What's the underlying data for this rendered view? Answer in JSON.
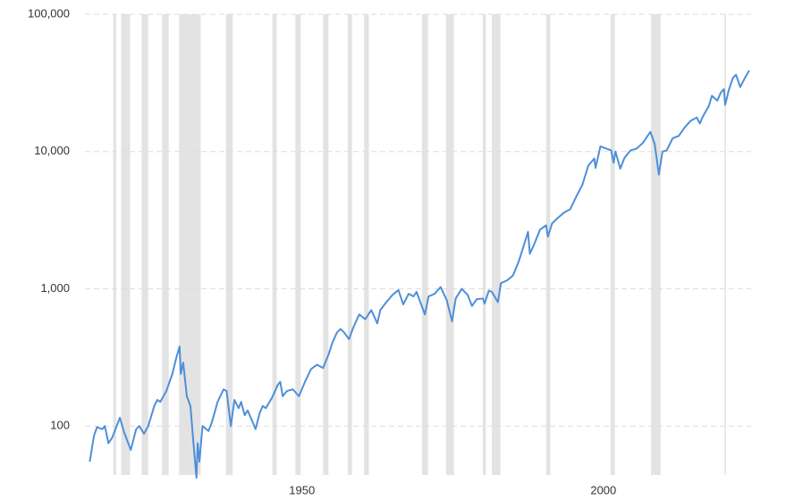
{
  "chart_data": {
    "type": "line",
    "log_scale": "y",
    "grid": true,
    "xlim": [
      1914,
      2024.5
    ],
    "xticks": [
      1950,
      2000
    ],
    "ylim": [
      44,
      100000
    ],
    "yticks": [
      100,
      {
        "value": 1000,
        "label": "1,000"
      },
      {
        "value": 10000,
        "label": "10,000"
      },
      {
        "value": 100000,
        "label": "100,000"
      }
    ],
    "shaded_color": "#e3e3e3",
    "shaded_periods": [
      [
        1918.7,
        1919.2
      ],
      [
        1920.0,
        1921.5
      ],
      [
        1923.4,
        1924.5
      ],
      [
        1926.8,
        1927.9
      ],
      [
        1929.6,
        1933.2
      ],
      [
        1937.4,
        1938.5
      ],
      [
        1945.1,
        1945.8
      ],
      [
        1948.9,
        1949.8
      ],
      [
        1953.5,
        1954.4
      ],
      [
        1957.6,
        1958.3
      ],
      [
        1960.3,
        1961.1
      ],
      [
        1969.9,
        1970.9
      ],
      [
        1973.9,
        1975.2
      ],
      [
        1980.0,
        1980.5
      ],
      [
        1981.5,
        1982.9
      ],
      [
        1990.5,
        1991.2
      ],
      [
        2001.2,
        2001.9
      ],
      [
        2007.9,
        2009.5
      ],
      [
        2020.1,
        2020.3
      ]
    ],
    "color": "#4f8fd8",
    "x": [
      1914.8,
      1915.5,
      1916.0,
      1916.9,
      1917.3,
      1917.9,
      1918.5,
      1919.8,
      1920.5,
      1921.6,
      1922.5,
      1923.0,
      1923.8,
      1924.5,
      1925.5,
      1926.0,
      1926.5,
      1927.5,
      1928.5,
      1929.2,
      1929.7,
      1929.9,
      1930.3,
      1930.9,
      1931.5,
      1932.0,
      1932.5,
      1932.7,
      1933.0,
      1933.5,
      1934.5,
      1935.0,
      1935.5,
      1936.0,
      1937.0,
      1937.5,
      1938.2,
      1938.8,
      1939.5,
      1939.9,
      1940.5,
      1941.0,
      1942.3,
      1943.0,
      1943.5,
      1944.0,
      1945.0,
      1946.0,
      1946.4,
      1946.8,
      1947.5,
      1948.5,
      1949.5,
      1950.5,
      1951.5,
      1952.5,
      1953.5,
      1954.5,
      1955.0,
      1955.8,
      1956.4,
      1957.0,
      1957.8,
      1958.5,
      1959.5,
      1960.5,
      1961.5,
      1962.5,
      1963.0,
      1964.0,
      1965.0,
      1966.0,
      1966.8,
      1967.7,
      1968.5,
      1969.0,
      1970.4,
      1971.0,
      1972.0,
      1973.0,
      1974.0,
      1974.9,
      1975.5,
      1976.5,
      1977.5,
      1978.2,
      1979.0,
      1980.0,
      1980.3,
      1981.0,
      1981.5,
      1982.5,
      1983.0,
      1984.0,
      1985.0,
      1986.0,
      1987.5,
      1987.8,
      1988.5,
      1989.5,
      1990.5,
      1990.8,
      1991.5,
      1992.5,
      1993.5,
      1994.5,
      1995.5,
      1996.5,
      1997.5,
      1998.5,
      1998.7,
      1999.5,
      2000.5,
      2001.3,
      2001.7,
      2002.0,
      2002.8,
      2003.5,
      2004.5,
      2005.5,
      2006.5,
      2007.8,
      2008.5,
      2009.2,
      2009.8,
      2010.5,
      2011.5,
      2012.5,
      2013.5,
      2014.5,
      2015.5,
      2016.0,
      2016.5,
      2017.5,
      2018.0,
      2018.9,
      2019.5,
      2020.0,
      2020.2,
      2020.8,
      2021.5,
      2022.0,
      2022.7,
      2023.5,
      2023.9,
      2024.2
    ],
    "values": [
      55,
      85,
      98,
      95,
      100,
      75,
      82,
      115,
      90,
      67,
      95,
      100,
      88,
      100,
      140,
      155,
      150,
      180,
      240,
      320,
      380,
      240,
      290,
      165,
      140,
      75,
      42,
      75,
      55,
      100,
      92,
      105,
      125,
      150,
      185,
      180,
      100,
      155,
      135,
      150,
      120,
      130,
      95,
      125,
      140,
      135,
      160,
      200,
      210,
      165,
      180,
      185,
      165,
      210,
      260,
      280,
      265,
      340,
      400,
      480,
      510,
      480,
      430,
      520,
      650,
      600,
      700,
      560,
      700,
      800,
      900,
      980,
      770,
      920,
      880,
      950,
      650,
      880,
      920,
      1030,
      830,
      580,
      850,
      1000,
      900,
      750,
      840,
      850,
      780,
      970,
      950,
      800,
      1100,
      1150,
      1250,
      1600,
      2600,
      1800,
      2100,
      2700,
      2900,
      2400,
      3000,
      3300,
      3600,
      3800,
      4700,
      5700,
      7900,
      8900,
      7600,
      10900,
      10500,
      10200,
      8300,
      10000,
      7500,
      9000,
      10200,
      10500,
      11500,
      13900,
      11400,
      6800,
      10000,
      10200,
      12500,
      13000,
      15000,
      16800,
      17700,
      16000,
      18000,
      21500,
      25500,
      23500,
      27000,
      28500,
      21900,
      28000,
      34500,
      36300,
      29500,
      34500,
      37000,
      39000
    ]
  }
}
